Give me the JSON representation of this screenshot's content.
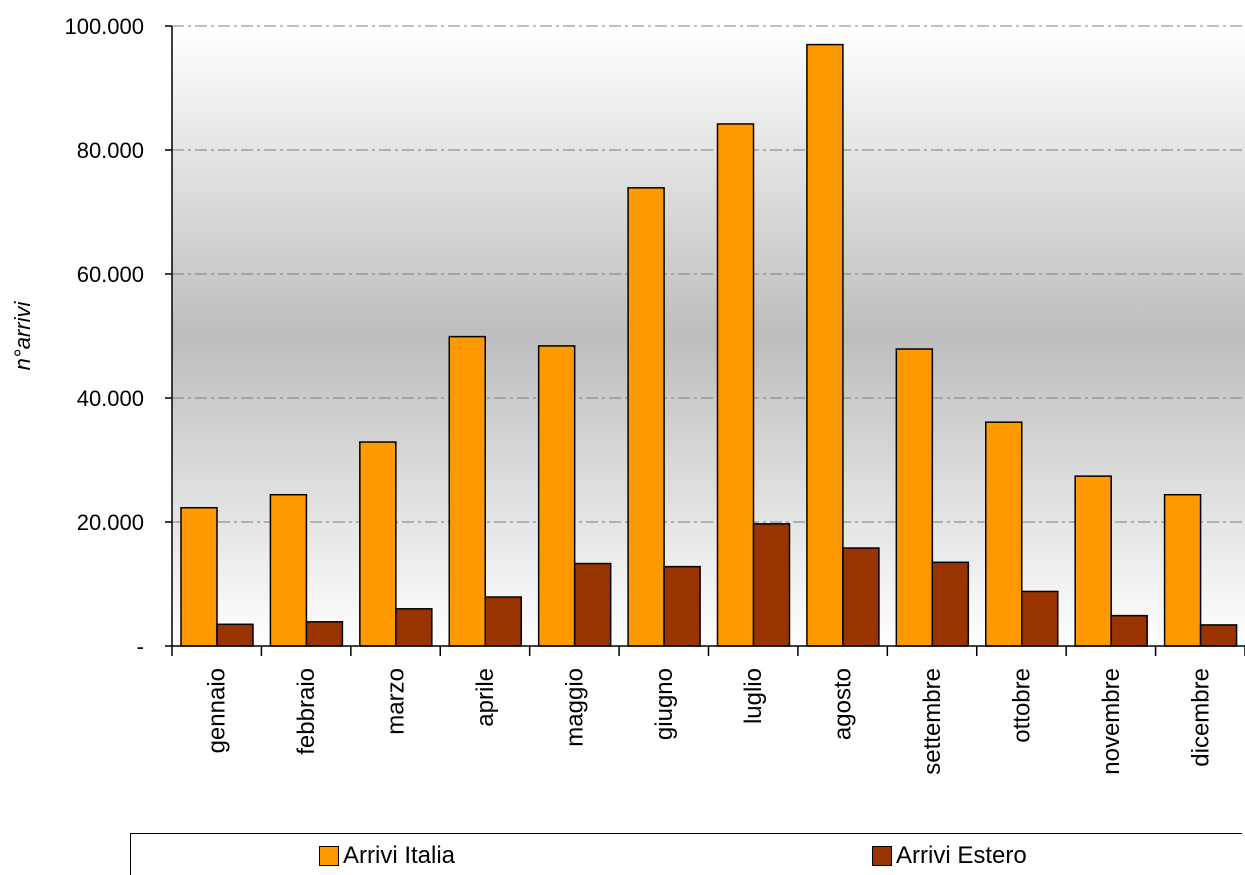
{
  "chart_data": {
    "type": "bar",
    "title": "",
    "xlabel": "",
    "ylabel": "n°arrivi",
    "ylim": [
      0,
      100000
    ],
    "yticks": [
      0,
      20000,
      40000,
      60000,
      80000,
      100000
    ],
    "ytick_labels": [
      "-",
      "20.000",
      "40.000",
      "60.000",
      "80.000",
      "100.000"
    ],
    "grid": true,
    "legend_position": "bottom",
    "categories": [
      "gennaio",
      "febbraio",
      "marzo",
      "aprile",
      "maggio",
      "giugno",
      "luglio",
      "agosto",
      "settembre",
      "ottobre",
      "novembre",
      "dicembre"
    ],
    "series": [
      {
        "name": "Arrivi Italia",
        "color": "#FF9900",
        "values": [
          22300,
          24400,
          32900,
          49900,
          48400,
          73900,
          84200,
          97000,
          47900,
          36100,
          27400,
          24400
        ]
      },
      {
        "name": "Arrivi Estero",
        "color": "#993300",
        "values": [
          3500,
          3900,
          6000,
          7900,
          13300,
          12800,
          19700,
          15800,
          13500,
          8800,
          4900,
          3400
        ]
      }
    ]
  }
}
